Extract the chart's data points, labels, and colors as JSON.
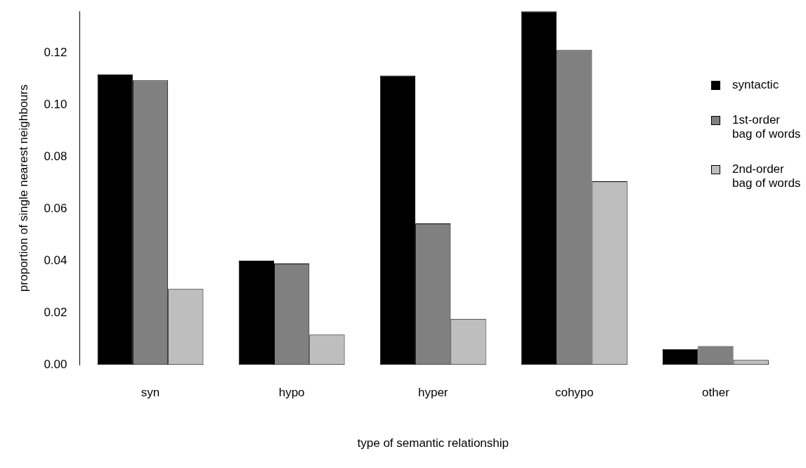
{
  "chart_data": {
    "type": "bar",
    "xlabel": "type of semantic relationship",
    "ylabel": "proportion of single nearest neighbours",
    "categories": [
      "syn",
      "hypo",
      "hyper",
      "cohypo",
      "other"
    ],
    "series": [
      {
        "name": "syntactic",
        "color": "#000000",
        "values": [
          0.1118,
          0.0401,
          0.1113,
          0.136,
          0.0061
        ]
      },
      {
        "name": "1st-order bag of words",
        "color": "#808080",
        "values": [
          0.1095,
          0.039,
          0.0544,
          0.1211,
          0.0072
        ]
      },
      {
        "name": "2nd-order bag of words",
        "color": "#bebebe",
        "values": [
          0.0292,
          0.0116,
          0.0177,
          0.0706,
          0.0019
        ]
      }
    ],
    "ylim": [
      0,
      0.136
    ],
    "yticks": [
      {
        "value": 0,
        "label": "0.00"
      },
      {
        "value": 0.02,
        "label": "0.02"
      },
      {
        "value": 0.04,
        "label": "0.04"
      },
      {
        "value": 0.06,
        "label": "0.06"
      },
      {
        "value": 0.08,
        "label": "0.08"
      },
      {
        "value": 0.1,
        "label": "0.10"
      },
      {
        "value": 0.12,
        "label": "0.12"
      }
    ],
    "grid": false,
    "legend": "top right"
  }
}
